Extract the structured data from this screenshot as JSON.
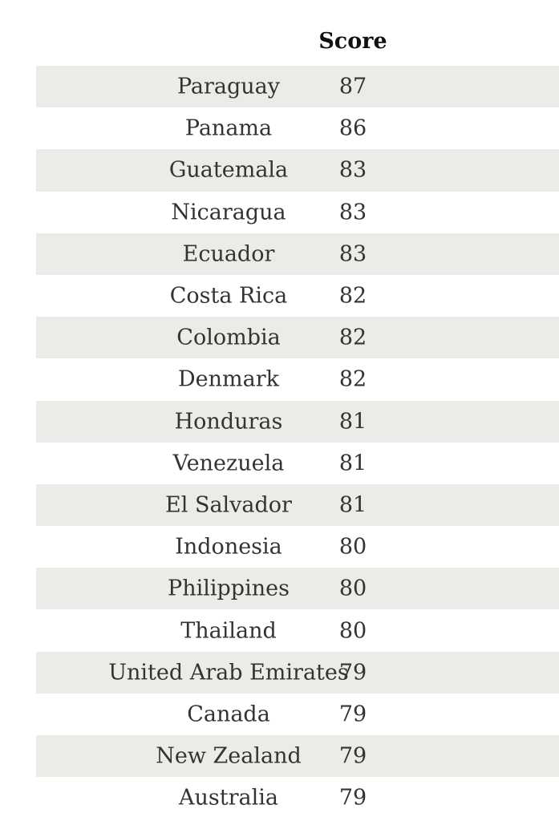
{
  "chart_data": {
    "type": "table",
    "columns": [
      "",
      "Score"
    ],
    "rows": [
      {
        "country": "Paraguay",
        "score": "87"
      },
      {
        "country": "Panama",
        "score": "86"
      },
      {
        "country": "Guatemala",
        "score": "83"
      },
      {
        "country": "Nicaragua",
        "score": "83"
      },
      {
        "country": "Ecuador",
        "score": "83"
      },
      {
        "country": "Costa Rica",
        "score": "82"
      },
      {
        "country": "Colombia",
        "score": "82"
      },
      {
        "country": "Denmark",
        "score": "82"
      },
      {
        "country": "Honduras",
        "score": "81"
      },
      {
        "country": "Venezuela",
        "score": "81"
      },
      {
        "country": "El Salvador",
        "score": "81"
      },
      {
        "country": "Indonesia",
        "score": "80"
      },
      {
        "country": "Philippines",
        "score": "80"
      },
      {
        "country": "Thailand",
        "score": "80"
      },
      {
        "country": "United Arab Emirates",
        "score": "79"
      },
      {
        "country": "Canada",
        "score": "79"
      },
      {
        "country": "New Zealand",
        "score": "79"
      },
      {
        "country": "Australia",
        "score": "79"
      }
    ]
  },
  "colors": {
    "row_shade": "#ebebe8",
    "text": "#333333",
    "header_text": "#111111"
  }
}
